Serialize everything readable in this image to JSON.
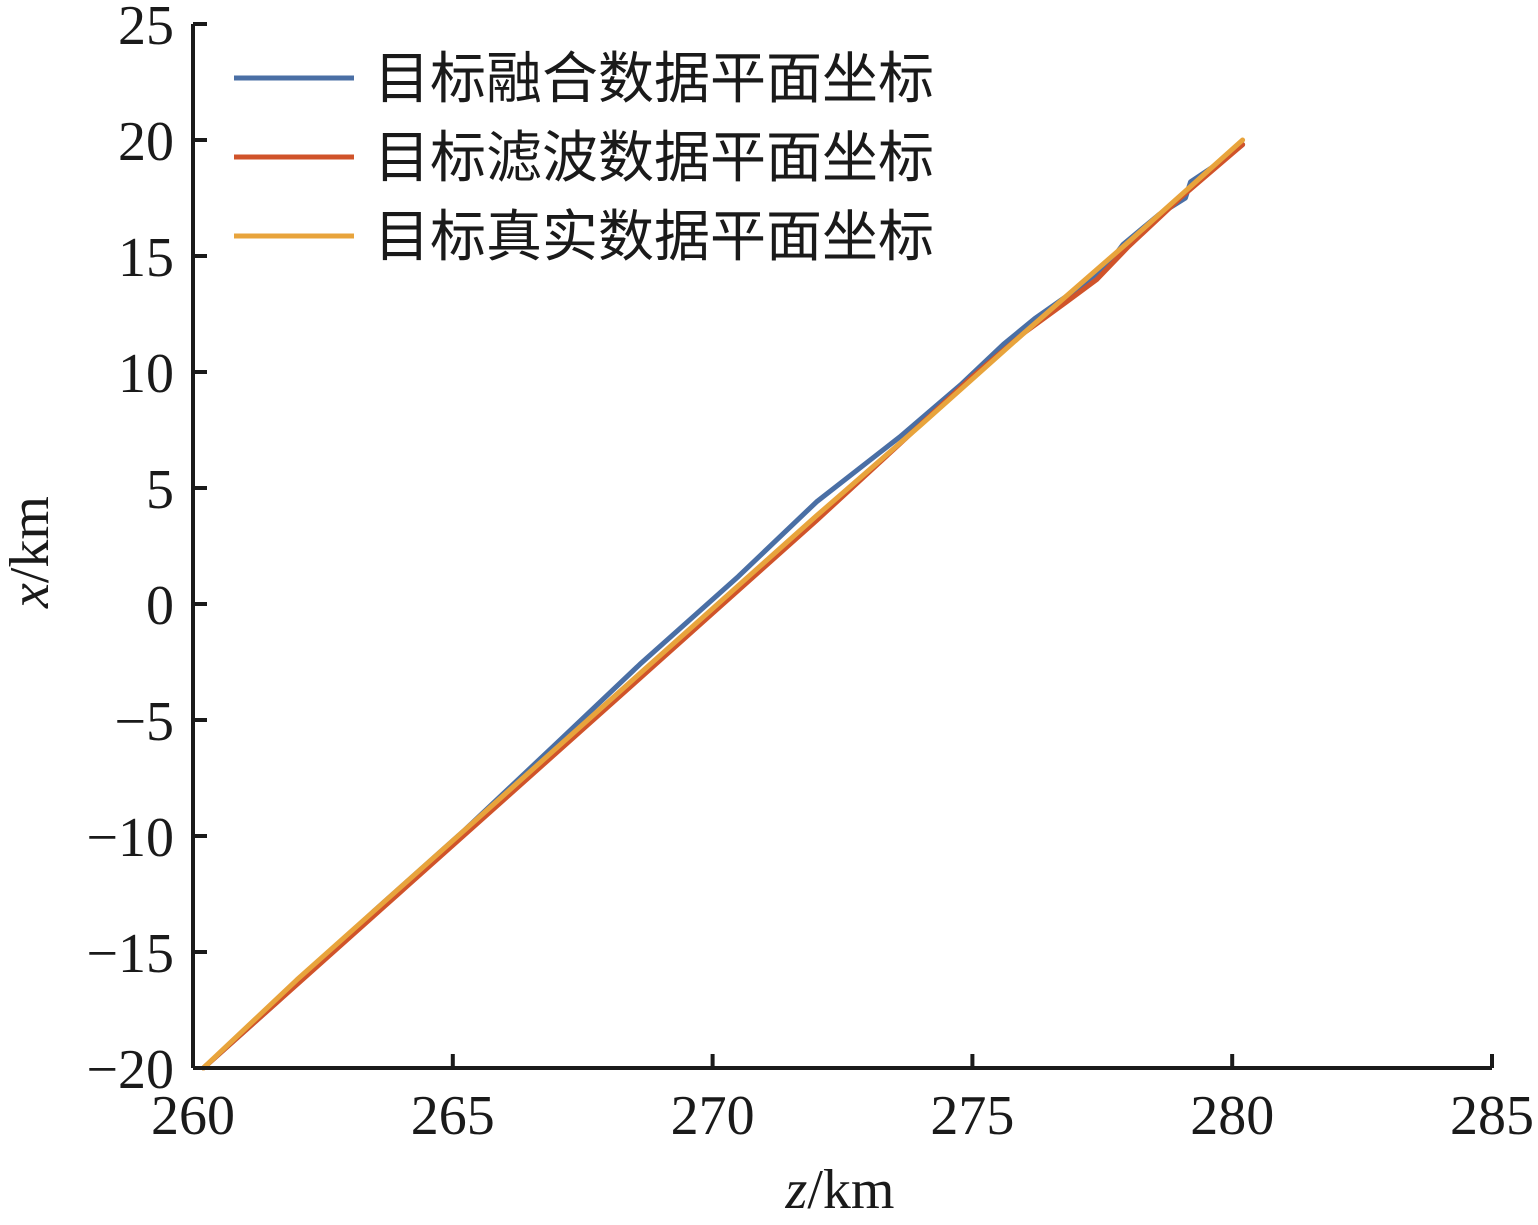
{
  "chart_data": {
    "type": "line",
    "xlabel_var": "z",
    "xlabel_unit": "/km",
    "ylabel_var": "x",
    "ylabel_unit": "/km",
    "xlim": [
      260,
      285
    ],
    "ylim": [
      -20,
      25
    ],
    "xticks": [
      260,
      265,
      270,
      275,
      280,
      285
    ],
    "yticks": [
      -20,
      -15,
      -10,
      -5,
      0,
      5,
      10,
      15,
      20,
      25
    ],
    "ytick_labels": [
      "−20",
      "−15",
      "−10",
      "−5",
      "0",
      "5",
      "10",
      "15",
      "20",
      "25"
    ],
    "grid": false,
    "legend_position": "top-left",
    "series": [
      {
        "name": "目标融合数据平面坐标",
        "color": "#4a6fa5",
        "x": [
          260.2,
          261.6,
          263.5,
          265.2,
          267.0,
          268.6,
          270.5,
          272.0,
          273.2,
          273.6,
          274.8,
          275.6,
          276.2,
          276.9,
          277.6,
          277.9,
          278.6,
          279.1,
          279.2,
          279.8,
          280.2
        ],
        "y": [
          -20.0,
          -17.2,
          -13.2,
          -9.8,
          -6.0,
          -2.6,
          1.2,
          4.4,
          6.5,
          7.2,
          9.5,
          11.2,
          12.3,
          13.4,
          14.6,
          15.5,
          16.8,
          17.5,
          18.2,
          19.1,
          19.8
        ]
      },
      {
        "name": "目标滤波数据平面坐标",
        "color": "#d0532a",
        "x": [
          260.2,
          262.0,
          264.0,
          266.0,
          268.0,
          270.0,
          272.0,
          273.6,
          275.0,
          276.0,
          276.8,
          277.4,
          278.0,
          279.0,
          280.2
        ],
        "y": [
          -20.0,
          -16.4,
          -12.4,
          -8.4,
          -4.4,
          -0.4,
          3.6,
          6.9,
          9.8,
          11.7,
          13.0,
          14.0,
          15.4,
          17.5,
          19.8
        ]
      },
      {
        "name": "目标真实数据平面坐标",
        "color": "#e8a43c",
        "x": [
          260.2,
          262.0,
          264.0,
          266.0,
          268.0,
          270.0,
          272.0,
          274.0,
          276.0,
          278.0,
          280.2
        ],
        "y": [
          -20.0,
          -16.2,
          -12.2,
          -8.2,
          -4.2,
          -0.2,
          3.8,
          7.7,
          11.7,
          15.6,
          20.0
        ]
      }
    ]
  }
}
